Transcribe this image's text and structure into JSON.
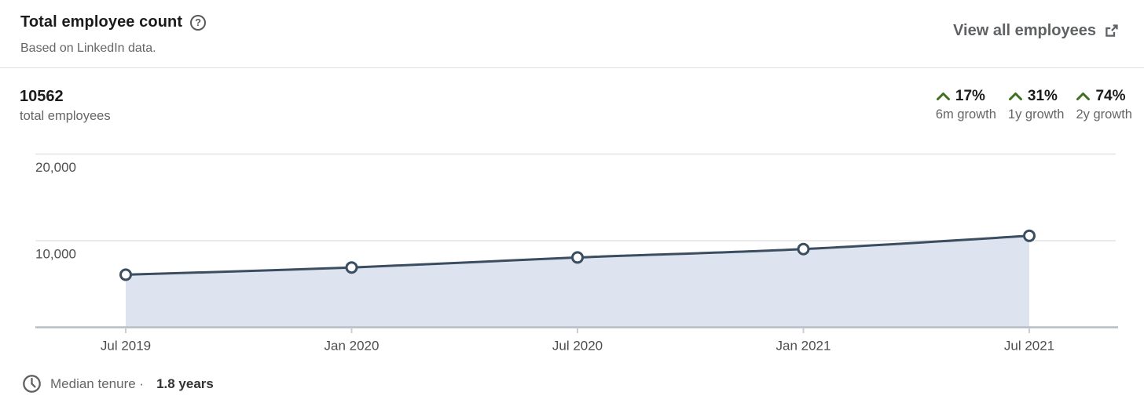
{
  "header": {
    "title": "Total employee count",
    "subtitle": "Based on LinkedIn data.",
    "view_all_label": "View all employees"
  },
  "stats": {
    "total_value": "10562",
    "total_label": "total employees",
    "growth": [
      {
        "percent": "17%",
        "label": "6m growth"
      },
      {
        "percent": "31%",
        "label": "1y growth"
      },
      {
        "percent": "74%",
        "label": "2y growth"
      }
    ]
  },
  "chart_data": {
    "type": "area",
    "title": "Total employee count",
    "x": [
      "Jul 2019",
      "Jan 2020",
      "Jul 2020",
      "Jan 2021",
      "Jul 2021"
    ],
    "values": [
      6070,
      6900,
      8062,
      9027,
      10562
    ],
    "ylim": [
      0,
      21000
    ],
    "yticks": [
      10000,
      20000
    ],
    "ytick_labels": [
      "10,000",
      "20,000"
    ],
    "grid": true,
    "point_markers": true,
    "line_color": "#3b4d60",
    "fill_color": "#dee4ef",
    "grid_color": "#e3e3e3",
    "axis_color": "#b6bdc5",
    "tick_color": "#c9ced4",
    "label_color": "#4f4f4f"
  },
  "footer": {
    "label": "Median tenure ·",
    "value": "1.8 years"
  },
  "colors": {
    "growth_green": "#3e711f"
  }
}
